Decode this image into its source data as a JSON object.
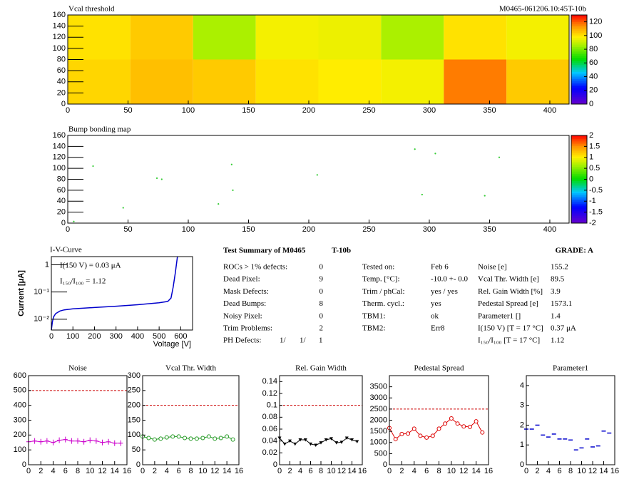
{
  "chart_data": [
    {
      "type": "heatmap",
      "title": "Vcal threshold",
      "subtitle": "M0465-061206.10:45T-10b",
      "x_edges": [
        0,
        52,
        104,
        156,
        208,
        260,
        312,
        364,
        416
      ],
      "y_edges": [
        0,
        80,
        160
      ],
      "z": [
        [
          102,
          106,
          104,
          100,
          98,
          96,
          116,
          104
        ],
        [
          100,
          104,
          86,
          96,
          95,
          86,
          100,
          96
        ]
      ],
      "xlim": [
        0,
        416
      ],
      "xticks": [
        0,
        50,
        100,
        150,
        200,
        250,
        300,
        350,
        400
      ],
      "ylim": [
        0,
        160
      ],
      "yticks": [
        0,
        20,
        40,
        60,
        80,
        100,
        120,
        140,
        160
      ],
      "zlim": [
        0,
        130
      ],
      "zticks": [
        0,
        20,
        40,
        60,
        80,
        100,
        120
      ]
    },
    {
      "type": "scatter",
      "title": "Bump bonding map",
      "color": "#33cc33",
      "x": [
        5,
        21,
        46,
        74,
        78,
        125,
        136,
        137,
        207,
        288,
        294,
        305,
        346,
        358
      ],
      "values": [
        3,
        104,
        28,
        82,
        80,
        35,
        107,
        60,
        88,
        135,
        52,
        127,
        50,
        120
      ],
      "xlim": [
        0,
        416
      ],
      "xticks": [
        0,
        50,
        100,
        150,
        200,
        250,
        300,
        350,
        400
      ],
      "ylim": [
        0,
        160
      ],
      "yticks": [
        0,
        20,
        40,
        60,
        80,
        100,
        120,
        140,
        160
      ],
      "zlim": [
        -2,
        2
      ],
      "zticks": [
        -2,
        -1.5,
        -1,
        -0.5,
        0,
        0.5,
        1,
        1.5,
        2
      ]
    },
    {
      "type": "line",
      "title": "I-V-Curve",
      "xlabel": "Voltage [V]",
      "ylabel": "Current [μA]",
      "color": "#0000cc",
      "log_y": true,
      "annotations": [
        "I(150 V) = 0.03 μA",
        "I₁₅₀/I₁₀₀ =  1.12"
      ],
      "x": [
        0,
        5,
        10,
        20,
        40,
        60,
        100,
        200,
        300,
        400,
        500,
        540,
        555,
        565,
        575,
        585
      ],
      "values": [
        0.004,
        0.008,
        0.012,
        0.016,
        0.02,
        0.022,
        0.024,
        0.027,
        0.03,
        0.034,
        0.04,
        0.045,
        0.06,
        0.15,
        0.5,
        2
      ],
      "xlim": [
        0,
        655
      ],
      "xticks": [
        0,
        100,
        200,
        300,
        400,
        500,
        600
      ],
      "ylim": [
        0.004,
        2
      ],
      "yticks": [
        {
          "value": 0.01,
          "label": "10⁻²"
        },
        {
          "value": 0.1,
          "label": "10⁻¹"
        },
        1
      ]
    },
    {
      "type": "line",
      "title": "Noise",
      "color": "#cc00cc",
      "marker": "plus",
      "threshold": 500,
      "x": [
        0,
        1,
        2,
        3,
        4,
        5,
        6,
        7,
        8,
        9,
        10,
        11,
        12,
        13,
        14,
        15
      ],
      "values": [
        155,
        160,
        155,
        160,
        150,
        165,
        170,
        160,
        160,
        155,
        165,
        160,
        150,
        155,
        145,
        145
      ],
      "xlim": [
        0,
        16
      ],
      "xticks": [
        0,
        2,
        4,
        6,
        8,
        10,
        12,
        14,
        16
      ],
      "ylim": [
        0,
        600
      ],
      "yticks": [
        0,
        100,
        200,
        300,
        400,
        500,
        600
      ]
    },
    {
      "type": "line",
      "title": "Vcal Thr. Width",
      "color": "#229922",
      "marker": "circle",
      "threshold": 200,
      "x": [
        0,
        1,
        2,
        3,
        4,
        5,
        6,
        7,
        8,
        9,
        10,
        11,
        12,
        13,
        14,
        15
      ],
      "values": [
        95,
        90,
        85,
        88,
        92,
        95,
        95,
        90,
        88,
        88,
        90,
        95,
        88,
        90,
        95,
        85
      ],
      "xlim": [
        0,
        16
      ],
      "xticks": [
        0,
        2,
        4,
        6,
        8,
        10,
        12,
        14,
        16
      ],
      "ylim": [
        0,
        300
      ],
      "yticks": [
        0,
        50,
        100,
        150,
        200,
        250,
        300
      ]
    },
    {
      "type": "line",
      "title": "Rel. Gain Width",
      "color": "#000000",
      "marker": "triangle",
      "threshold": 0.1,
      "x": [
        0,
        1,
        2,
        3,
        4,
        5,
        6,
        7,
        8,
        9,
        10,
        11,
        12,
        13,
        14,
        15
      ],
      "values": [
        0.045,
        0.035,
        0.04,
        0.035,
        0.042,
        0.042,
        0.035,
        0.033,
        0.037,
        0.042,
        0.044,
        0.037,
        0.038,
        0.045,
        0.042,
        0.039
      ],
      "xlim": [
        0,
        16
      ],
      "xticks": [
        0,
        2,
        4,
        6,
        8,
        10,
        12,
        14,
        16
      ],
      "ylim": [
        0,
        0.15
      ],
      "yticks": [
        0,
        0.02,
        0.04,
        0.06,
        0.08,
        0.1,
        0.12,
        0.14
      ]
    },
    {
      "type": "line",
      "title": "Pedestal Spread",
      "color": "#dd0000",
      "marker": "circle",
      "threshold": 2500,
      "x": [
        0,
        1,
        2,
        3,
        4,
        5,
        6,
        7,
        8,
        9,
        10,
        11,
        12,
        13,
        14,
        15
      ],
      "values": [
        1650,
        1150,
        1380,
        1400,
        1620,
        1300,
        1220,
        1300,
        1620,
        1850,
        2080,
        1850,
        1720,
        1700,
        1950,
        1450
      ],
      "xlim": [
        0,
        16
      ],
      "xticks": [
        0,
        2,
        4,
        6,
        8,
        10,
        12,
        14,
        16
      ],
      "ylim": [
        0,
        4000
      ],
      "yticks": [
        0,
        500,
        1000,
        1500,
        2000,
        2500,
        3000,
        3500
      ]
    },
    {
      "type": "scatter",
      "title": "Parameter1",
      "color": "#0000cc",
      "marker": "dash",
      "x": [
        0,
        1,
        2,
        3,
        4,
        5,
        6,
        7,
        8,
        9,
        10,
        11,
        12,
        13,
        14,
        15
      ],
      "values": [
        1.8,
        1.8,
        2.0,
        1.5,
        1.4,
        1.55,
        1.3,
        1.3,
        1.25,
        0.75,
        0.85,
        1.3,
        0.9,
        0.95,
        1.7,
        1.6
      ],
      "xlim": [
        0,
        16
      ],
      "xticks": [
        0,
        2,
        4,
        6,
        8,
        10,
        12,
        14,
        16
      ],
      "ylim": [
        0,
        4.5
      ],
      "yticks": [
        0,
        1,
        2,
        3,
        4
      ]
    }
  ],
  "summary": {
    "title": "Test Summary of M0465",
    "module": "T-10b",
    "grade": "GRADE:  A",
    "defects": [
      {
        "label": "ROCs > 1% defects:",
        "value": "0"
      },
      {
        "label": "Dead Pixel:",
        "value": "9"
      },
      {
        "label": "Mask Defects:",
        "value": "0"
      },
      {
        "label": "Dead Bumps:",
        "value": "8"
      },
      {
        "label": "Noisy Pixel:",
        "value": "0"
      },
      {
        "label": "Trim Problems:",
        "value": "2"
      }
    ],
    "ph_defects": {
      "label": "PH Defects:",
      "values": [
        "1/",
        "1/",
        "1"
      ]
    },
    "conditions": [
      {
        "label": "Tested on:",
        "value": "Feb 6"
      },
      {
        "label": "Temp. [°C]:",
        "value": "-10.0 +- 0.0"
      },
      {
        "label": "Trim / phCal:",
        "value": "yes / yes"
      },
      {
        "label": "Therm. cycl.:",
        "value": "yes"
      },
      {
        "label": "TBM1:",
        "value": "ok"
      },
      {
        "label": "TBM2:",
        "value": "Err8"
      }
    ],
    "results": [
      {
        "label": "Noise [e]",
        "value": "155.2"
      },
      {
        "label": "Vcal Thr. Width [e]",
        "value": "89.5"
      },
      {
        "label": "Rel. Gain Width [%]",
        "value": "3.9"
      },
      {
        "label": "Pedestal Spread [e]",
        "value": "1573.1"
      },
      {
        "label": "Parameter1 []",
        "value": "1.4"
      },
      {
        "label": "I(150 V)  [T = 17 °C]",
        "value": "0.37 μA"
      },
      {
        "label": "I₁₅₀/I₁₀₀  [T = 17 °C]",
        "value": "1.12"
      }
    ]
  }
}
